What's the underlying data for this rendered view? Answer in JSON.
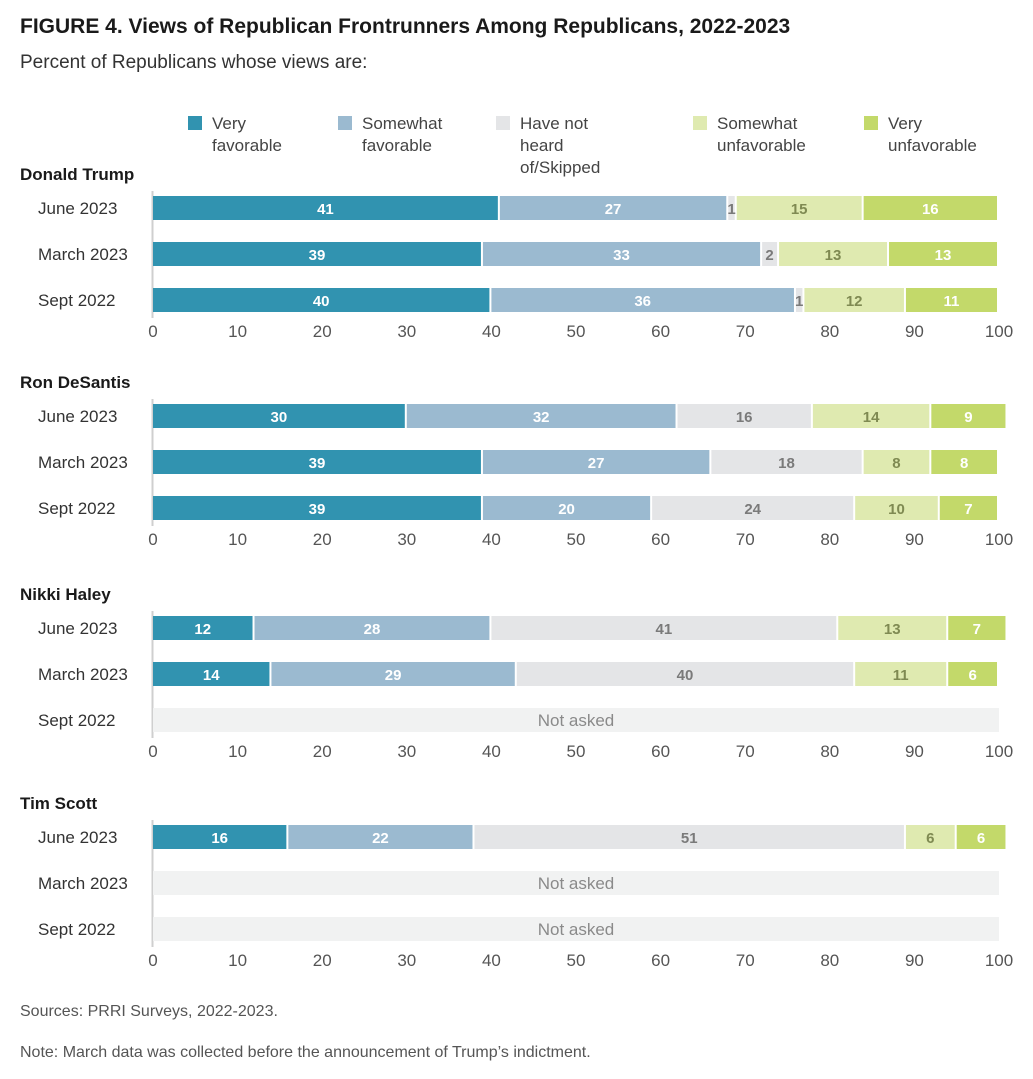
{
  "chart_data": {
    "type": "bar",
    "orientation": "horizontal",
    "stacked": true,
    "title": "FIGURE 4.  Views of Republican Frontrunners Among Republicans, 2022-2023",
    "subtitle": "Percent of Republicans whose views are:",
    "legend": [
      {
        "name": "Very\nfavorable",
        "color": "#3193b0"
      },
      {
        "name": "Somewhat\nfavorable",
        "color": "#9bbad0"
      },
      {
        "name": "Have not heard\nof/Skipped",
        "color": "#e4e5e7"
      },
      {
        "name": "Somewhat\nunfavorable",
        "color": "#dfeab0"
      },
      {
        "name": "Very\nunfavorable",
        "color": "#c3d96a"
      }
    ],
    "xlim": [
      0,
      100
    ],
    "ticks": [
      0,
      10,
      20,
      30,
      40,
      50,
      60,
      70,
      80,
      90,
      100
    ],
    "not_asked_label": "Not asked",
    "panels": [
      {
        "name": "Donald Trump",
        "rows": [
          {
            "label": "June 2023",
            "values": [
              41,
              27,
              1,
              15,
              16
            ]
          },
          {
            "label": "March 2023",
            "values": [
              39,
              33,
              2,
              13,
              13
            ]
          },
          {
            "label": "Sept 2022",
            "values": [
              40,
              36,
              1,
              12,
              11
            ]
          }
        ]
      },
      {
        "name": "Ron DeSantis",
        "rows": [
          {
            "label": "June 2023",
            "values": [
              30,
              32,
              16,
              14,
              9
            ]
          },
          {
            "label": "March 2023",
            "values": [
              39,
              27,
              18,
              8,
              8
            ]
          },
          {
            "label": "Sept 2022",
            "values": [
              39,
              20,
              24,
              10,
              7
            ]
          }
        ]
      },
      {
        "name": "Nikki Haley",
        "rows": [
          {
            "label": "June 2023",
            "values": [
              12,
              28,
              41,
              13,
              7
            ]
          },
          {
            "label": "March 2023",
            "values": [
              14,
              29,
              40,
              11,
              6
            ]
          },
          {
            "label": "Sept 2022",
            "values": null
          }
        ]
      },
      {
        "name": "Tim Scott",
        "rows": [
          {
            "label": "June 2023",
            "values": [
              16,
              22,
              51,
              6,
              6
            ]
          },
          {
            "label": "March 2023",
            "values": null
          },
          {
            "label": "Sept 2022",
            "values": null
          }
        ]
      }
    ]
  },
  "footer": {
    "sources": "Sources: PRRI Surveys, 2022-2023.",
    "note": "Note: March data was collected before the announcement of Trump’s indictment."
  }
}
